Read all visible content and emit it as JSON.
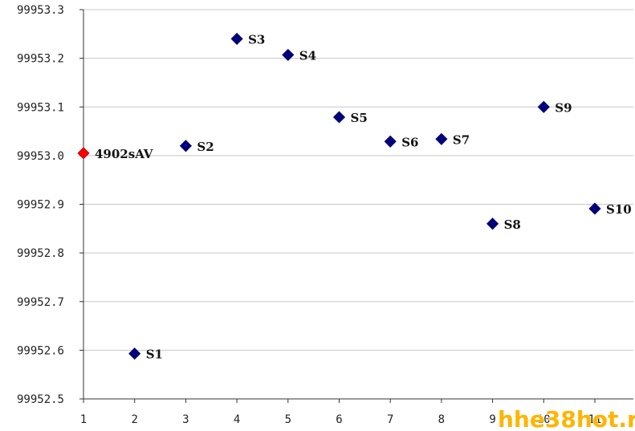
{
  "chart_data": {
    "type": "scatter",
    "title": "",
    "xlabel": "",
    "ylabel": "",
    "xlim": [
      1,
      12
    ],
    "ylim": [
      99952.5,
      99953.3
    ],
    "x_ticks": [
      "1",
      "2",
      "3",
      "4",
      "5",
      "6",
      "7",
      "8",
      "9",
      "10",
      "11"
    ],
    "y_ticks": [
      "99953.3",
      "99953.2",
      "99953.1",
      "99953.0",
      "99952.9",
      "99952.8",
      "99952.7",
      "99952.6",
      "99952.5"
    ],
    "y_tick_values": [
      99953.3,
      99953.2,
      99953.1,
      99953.0,
      99952.9,
      99952.8,
      99952.7,
      99952.6,
      99952.5
    ],
    "grid": true,
    "points": [
      {
        "label": "4902sAV",
        "x": 1,
        "y": 99953.005,
        "color": "#ff0000",
        "marker": "diamond"
      },
      {
        "label": "S1",
        "x": 2,
        "y": 99952.593,
        "color": "#00007a",
        "marker": "diamond"
      },
      {
        "label": "S2",
        "x": 3,
        "y": 99953.02,
        "color": "#00007a",
        "marker": "diamond"
      },
      {
        "label": "S3",
        "x": 4,
        "y": 99953.24,
        "color": "#00007a",
        "marker": "diamond"
      },
      {
        "label": "S4",
        "x": 5,
        "y": 99953.207,
        "color": "#00007a",
        "marker": "diamond"
      },
      {
        "label": "S5",
        "x": 6,
        "y": 99953.079,
        "color": "#00007a",
        "marker": "diamond"
      },
      {
        "label": "S6",
        "x": 7,
        "y": 99953.029,
        "color": "#00007a",
        "marker": "diamond"
      },
      {
        "label": "S7",
        "x": 8,
        "y": 99953.034,
        "color": "#00007a",
        "marker": "diamond"
      },
      {
        "label": "S8",
        "x": 9,
        "y": 99952.86,
        "color": "#00007a",
        "marker": "diamond"
      },
      {
        "label": "S9",
        "x": 10,
        "y": 99953.1,
        "color": "#00007a",
        "marker": "diamond"
      },
      {
        "label": "S10",
        "x": 11,
        "y": 99952.891,
        "color": "#00007a",
        "marker": "diamond"
      }
    ]
  },
  "watermark": "hhe38hot.r"
}
